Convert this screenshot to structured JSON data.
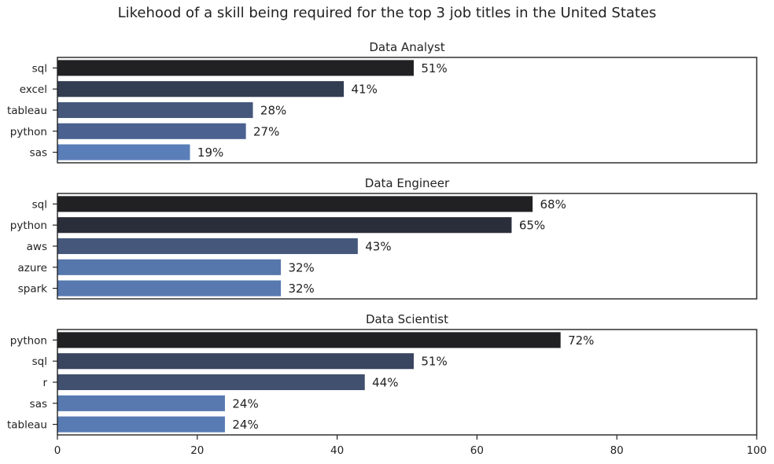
{
  "chart_data": {
    "type": "bar",
    "orientation": "horizontal",
    "title": "Likehood of a skill being required for the top 3 job titles in the United States",
    "xlim": [
      0,
      100
    ],
    "xticks": [
      0,
      20,
      40,
      60,
      80,
      100
    ],
    "grid": false,
    "value_label_suffix": "%",
    "subplots": [
      {
        "title": "Data Analyst",
        "categories": [
          "sql",
          "excel",
          "tableau",
          "python",
          "sas"
        ],
        "values": [
          51,
          41,
          28,
          27,
          19
        ],
        "colors": [
          "#212124",
          "#333d52",
          "#45587c",
          "#4b6290",
          "#5a7eb8"
        ]
      },
      {
        "title": "Data Engineer",
        "categories": [
          "sql",
          "python",
          "aws",
          "azure",
          "spark"
        ],
        "values": [
          68,
          65,
          43,
          32,
          32
        ],
        "colors": [
          "#212124",
          "#2a2e3b",
          "#45587c",
          "#5677ab",
          "#5779b0"
        ]
      },
      {
        "title": "Data Scientist",
        "categories": [
          "python",
          "sql",
          "r",
          "sas",
          "tableau"
        ],
        "values": [
          72,
          51,
          44,
          24,
          24
        ],
        "colors": [
          "#212124",
          "#3a4560",
          "#41506e",
          "#5779b0",
          "#587bb3"
        ]
      }
    ]
  }
}
